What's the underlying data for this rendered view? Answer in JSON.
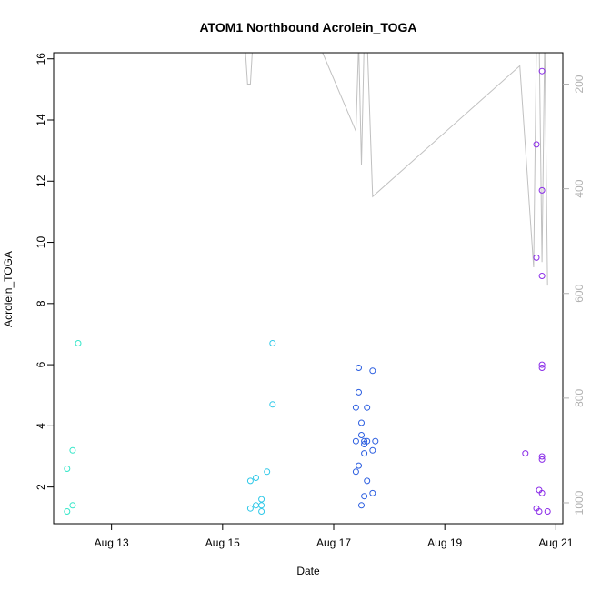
{
  "chart_data": {
    "type": "scatter",
    "title": "ATOM1 Northbound Acrolein_TOGA",
    "xlabel": "Date",
    "ylabel": "Acrolein_TOGA",
    "x_ticks": [
      "Aug 13",
      "Aug 15",
      "Aug 17",
      "Aug 19",
      "Aug 21"
    ],
    "y_ticks": [
      "2",
      "4",
      "6",
      "8",
      "10",
      "12",
      "14",
      "16"
    ],
    "y2_ticks": [
      "200",
      "400",
      "600",
      "800",
      "1000"
    ],
    "x_range": [
      "2016-08-11T23:00",
      "2016-08-21T03:00"
    ],
    "ylim": [
      0.8,
      16.2
    ],
    "y2lim": [
      1040,
      140
    ],
    "y2_reversed": true,
    "colors": {
      "points_early": "#33e6c8",
      "points_mid": "#2ec8e8",
      "points_late": "#2a5de0",
      "points_last": "#8a2be8",
      "line": "#c0c0c0"
    },
    "points": [
      {
        "x": "2016-08-12T04:48",
        "y": 2.6,
        "group": "points_early"
      },
      {
        "x": "2016-08-12T04:48",
        "y": 1.2,
        "group": "points_early"
      },
      {
        "x": "2016-08-12T07:12",
        "y": 3.2,
        "group": "points_early"
      },
      {
        "x": "2016-08-12T07:12",
        "y": 1.4,
        "group": "points_early"
      },
      {
        "x": "2016-08-12T09:36",
        "y": 6.7,
        "group": "points_early"
      },
      {
        "x": "2016-08-15T12:00",
        "y": 2.2,
        "group": "points_mid"
      },
      {
        "x": "2016-08-15T12:00",
        "y": 1.3,
        "group": "points_mid"
      },
      {
        "x": "2016-08-15T14:24",
        "y": 2.3,
        "group": "points_mid"
      },
      {
        "x": "2016-08-15T14:24",
        "y": 1.4,
        "group": "points_mid"
      },
      {
        "x": "2016-08-15T16:48",
        "y": 1.6,
        "group": "points_mid"
      },
      {
        "x": "2016-08-15T16:48",
        "y": 1.4,
        "group": "points_mid"
      },
      {
        "x": "2016-08-15T16:48",
        "y": 1.2,
        "group": "points_mid"
      },
      {
        "x": "2016-08-15T19:12",
        "y": 2.5,
        "group": "points_mid"
      },
      {
        "x": "2016-08-15T21:36",
        "y": 6.7,
        "group": "points_mid"
      },
      {
        "x": "2016-08-15T21:36",
        "y": 4.7,
        "group": "points_mid"
      },
      {
        "x": "2016-08-17T09:36",
        "y": 4.6,
        "group": "points_late"
      },
      {
        "x": "2016-08-17T09:36",
        "y": 3.5,
        "group": "points_late"
      },
      {
        "x": "2016-08-17T09:36",
        "y": 2.5,
        "group": "points_late"
      },
      {
        "x": "2016-08-17T10:48",
        "y": 5.9,
        "group": "points_late"
      },
      {
        "x": "2016-08-17T10:48",
        "y": 5.1,
        "group": "points_late"
      },
      {
        "x": "2016-08-17T10:48",
        "y": 2.7,
        "group": "points_late"
      },
      {
        "x": "2016-08-17T12:00",
        "y": 4.1,
        "group": "points_late"
      },
      {
        "x": "2016-08-17T12:00",
        "y": 3.7,
        "group": "points_late"
      },
      {
        "x": "2016-08-17T12:00",
        "y": 1.4,
        "group": "points_late"
      },
      {
        "x": "2016-08-17T13:12",
        "y": 3.5,
        "group": "points_late"
      },
      {
        "x": "2016-08-17T13:12",
        "y": 3.4,
        "group": "points_late"
      },
      {
        "x": "2016-08-17T13:12",
        "y": 3.1,
        "group": "points_late"
      },
      {
        "x": "2016-08-17T13:12",
        "y": 1.7,
        "group": "points_late"
      },
      {
        "x": "2016-08-17T14:24",
        "y": 4.6,
        "group": "points_late"
      },
      {
        "x": "2016-08-17T14:24",
        "y": 3.5,
        "group": "points_late"
      },
      {
        "x": "2016-08-17T14:24",
        "y": 2.2,
        "group": "points_late"
      },
      {
        "x": "2016-08-17T16:48",
        "y": 5.8,
        "group": "points_late"
      },
      {
        "x": "2016-08-17T16:48",
        "y": 3.2,
        "group": "points_late"
      },
      {
        "x": "2016-08-17T16:48",
        "y": 1.8,
        "group": "points_late"
      },
      {
        "x": "2016-08-17T18:00",
        "y": 3.5,
        "group": "points_late"
      },
      {
        "x": "2016-08-20T10:48",
        "y": 3.1,
        "group": "points_last"
      },
      {
        "x": "2016-08-20T15:36",
        "y": 13.2,
        "group": "points_last"
      },
      {
        "x": "2016-08-20T15:36",
        "y": 9.5,
        "group": "points_last"
      },
      {
        "x": "2016-08-20T15:36",
        "y": 1.3,
        "group": "points_last"
      },
      {
        "x": "2016-08-20T16:48",
        "y": 1.9,
        "group": "points_last"
      },
      {
        "x": "2016-08-20T16:48",
        "y": 1.2,
        "group": "points_last"
      },
      {
        "x": "2016-08-20T18:00",
        "y": 15.6,
        "group": "points_last"
      },
      {
        "x": "2016-08-20T18:00",
        "y": 11.7,
        "group": "points_last"
      },
      {
        "x": "2016-08-20T18:00",
        "y": 8.9,
        "group": "points_last"
      },
      {
        "x": "2016-08-20T18:00",
        "y": 6.0,
        "group": "points_last"
      },
      {
        "x": "2016-08-20T18:00",
        "y": 5.9,
        "group": "points_last"
      },
      {
        "x": "2016-08-20T18:00",
        "y": 3.0,
        "group": "points_last"
      },
      {
        "x": "2016-08-20T18:00",
        "y": 2.9,
        "group": "points_last"
      },
      {
        "x": "2016-08-20T18:00",
        "y": 1.8,
        "group": "points_last"
      },
      {
        "x": "2016-08-20T20:24",
        "y": 1.2,
        "group": "points_last"
      }
    ],
    "line_series": [
      {
        "x": "2016-08-15T09:36",
        "y": 120
      },
      {
        "x": "2016-08-15T10:48",
        "y": 200
      },
      {
        "x": "2016-08-15T12:00",
        "y": 200
      },
      {
        "x": "2016-08-15T13:12",
        "y": 110
      },
      {
        "x": "2016-08-16T19:12",
        "y": 140
      },
      {
        "x": "2016-08-17T09:36",
        "y": 290
      },
      {
        "x": "2016-08-17T10:48",
        "y": 120
      },
      {
        "x": "2016-08-17T12:00",
        "y": 355
      },
      {
        "x": "2016-08-17T13:12",
        "y": 110
      },
      {
        "x": "2016-08-17T14:24",
        "y": 110
      },
      {
        "x": "2016-08-17T16:48",
        "y": 415
      },
      {
        "x": "2016-08-20T08:24",
        "y": 165
      },
      {
        "x": "2016-08-20T14:24",
        "y": 550
      },
      {
        "x": "2016-08-20T15:36",
        "y": 120
      },
      {
        "x": "2016-08-20T16:48",
        "y": 110
      },
      {
        "x": "2016-08-20T18:00",
        "y": 540
      },
      {
        "x": "2016-08-20T19:12",
        "y": 110
      },
      {
        "x": "2016-08-20T20:24",
        "y": 585
      }
    ]
  }
}
